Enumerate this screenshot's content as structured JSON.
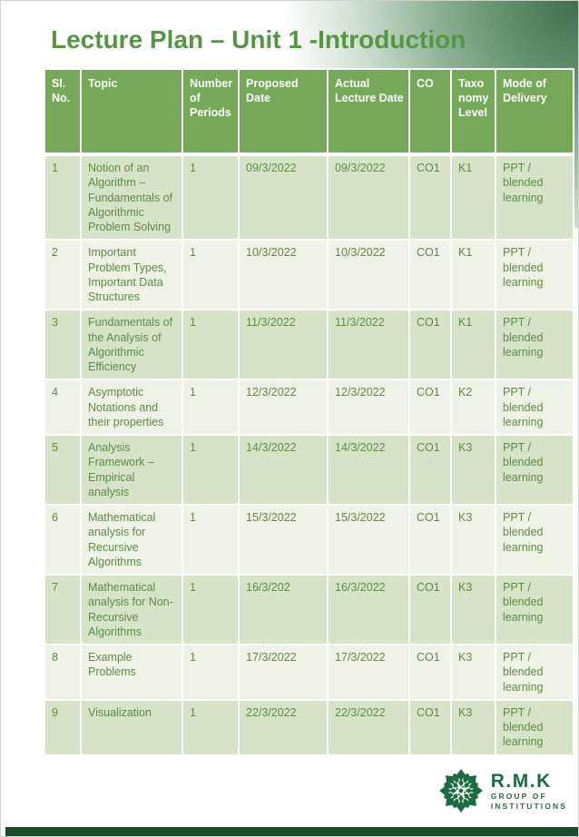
{
  "page_title": "Lecture Plan – Unit 1 -Introduction",
  "table": {
    "columns": [
      {
        "key": "sl_no",
        "label": "Sl. No."
      },
      {
        "key": "topic",
        "label": "Topic"
      },
      {
        "key": "periods",
        "label": "Number of Periods"
      },
      {
        "key": "proposed_date",
        "label": "Proposed Date"
      },
      {
        "key": "actual_date",
        "label": "Actual Lecture Date"
      },
      {
        "key": "co",
        "label": "CO"
      },
      {
        "key": "taxonomy",
        "label": "Taxonomy Level"
      },
      {
        "key": "mode",
        "label": "Mode of Delivery"
      }
    ],
    "rows": [
      {
        "sl_no": "1",
        "topic": "Notion of an Algorithm – Fundamentals of Algorithmic Problem Solving",
        "periods": "1",
        "proposed_date": "09/3/2022",
        "actual_date": "09/3/2022",
        "co": "CO1",
        "taxonomy": "K1",
        "mode": "PPT / blended learning"
      },
      {
        "sl_no": "2",
        "topic": "Important Problem Types, Important Data Structures",
        "periods": "1",
        "proposed_date": "10/3/2022",
        "actual_date": "10/3/2022",
        "co": "CO1",
        "taxonomy": "K1",
        "mode": "PPT / blended learning"
      },
      {
        "sl_no": "3",
        "topic": "Fundamentals of the Analysis of Algorithmic Efficiency",
        "periods": "1",
        "proposed_date": "11/3/2022",
        "actual_date": "11/3/2022",
        "co": "CO1",
        "taxonomy": "K1",
        "mode": "PPT / blended learning"
      },
      {
        "sl_no": "4",
        "topic": "Asymptotic Notations and their properties",
        "periods": "1",
        "proposed_date": "12/3/2022",
        "actual_date": "12/3/2022",
        "co": "CO1",
        "taxonomy": "K2",
        "mode": "PPT / blended learning"
      },
      {
        "sl_no": "5",
        "topic": "Analysis Framework – Empirical analysis",
        "periods": "1",
        "proposed_date": "14/3/2022",
        "actual_date": "14/3/2022",
        "co": "CO1",
        "taxonomy": "K3",
        "mode": "PPT / blended learning"
      },
      {
        "sl_no": "6",
        "topic": "Mathematical analysis for Recursive Algorithms",
        "periods": "1",
        "proposed_date": "15/3/2022",
        "actual_date": "15/3/2022",
        "co": "CO1",
        "taxonomy": "K3",
        "mode": "PPT / blended learning"
      },
      {
        "sl_no": "7",
        "topic": "Mathematical analysis for Non-Recursive Algorithms",
        "periods": "1",
        "proposed_date": "16/3/202",
        "actual_date": "16/3/2022",
        "co": "CO1",
        "taxonomy": "K3",
        "mode": "PPT / blended learning"
      },
      {
        "sl_no": "8",
        "topic": "Example Problems",
        "periods": "1",
        "proposed_date": "17/3/2022",
        "actual_date": "17/3/2022",
        "co": "CO1",
        "taxonomy": "K3",
        "mode": "PPT / blended learning"
      },
      {
        "sl_no": "9",
        "topic": "Visualization",
        "periods": "1",
        "proposed_date": "22/3/2022",
        "actual_date": "22/3/2022",
        "co": "CO1",
        "taxonomy": "K3",
        "mode": "PPT / blended learning"
      }
    ]
  },
  "logo": {
    "name": "R.M.K",
    "line1": "GROUP OF",
    "line2": "INSTITUTIONS"
  },
  "colors": {
    "header_green": "#76a85a",
    "row_odd": "#d6e3c9",
    "row_even": "#eef2e7",
    "body_text_green": "#5e8a43",
    "title_green": "#569544",
    "logo_dark_green": "#1d6b40",
    "footer_bar_green": "#1b4d2c",
    "corner_gradient_green": "#3f6e50"
  }
}
